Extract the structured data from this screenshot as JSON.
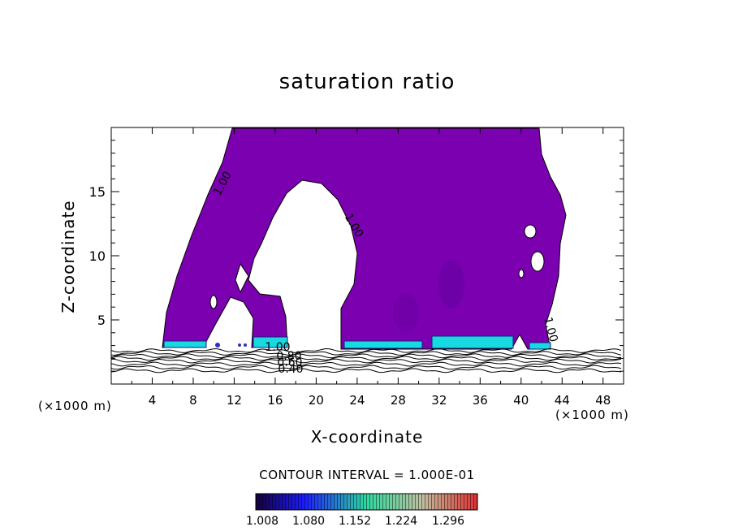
{
  "chart_data": {
    "type": "contour",
    "title": "saturation ratio",
    "xlabel": "X-coordinate",
    "ylabel": "Z-coordinate",
    "x_unit_label_left": "(×1000 m)",
    "x_unit_label_right": "(×1000 m)",
    "xlim": [
      0,
      50
    ],
    "ylim": [
      0,
      20
    ],
    "x_ticks": [
      4,
      8,
      12,
      16,
      20,
      24,
      28,
      32,
      36,
      40,
      44,
      48
    ],
    "y_ticks": [
      5,
      10,
      15
    ],
    "contour_interval_text": "CONTOUR INTERVAL = 1.000E-01",
    "contour_labels": [
      "1.00",
      "1.00",
      "1.00",
      "1.00",
      "0.80",
      "0.60",
      "0.40"
    ],
    "colorbar": {
      "ticks": [
        "1.008",
        "1.080",
        "1.152",
        "1.224",
        "1.296"
      ],
      "colors": [
        "#16003a",
        "#1c1cff",
        "#2fd8a0",
        "#c0c0a0",
        "#e03030"
      ]
    },
    "fill_color": "#7b00b0",
    "grid": false
  }
}
